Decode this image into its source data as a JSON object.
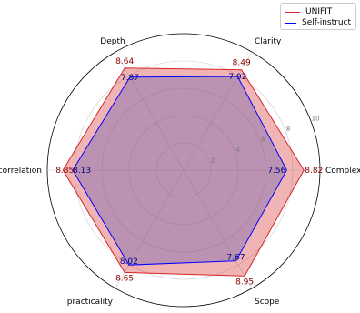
{
  "chart_data": {
    "type": "radar",
    "axes": [
      "Complexity",
      "Clarity",
      "Depth",
      "correlation",
      "practicality",
      "Scope"
    ],
    "rmax": 10,
    "rticks": [
      2,
      4,
      6,
      8,
      10
    ],
    "rtick_labels": [
      "2",
      "4",
      "6",
      "8",
      "10"
    ],
    "grid": true,
    "legend_placement": "top-right",
    "series": [
      {
        "name": "UNIFIT",
        "color": "#d62728",
        "fill": "#d62728",
        "values": [
          8.82,
          8.49,
          8.64,
          8.85,
          8.65,
          8.95
        ],
        "value_labels": [
          "8.82",
          "8.49",
          "8.64",
          "8.85",
          "8.65",
          "8.95"
        ]
      },
      {
        "name": "Self-instruct",
        "color": "#0000ff",
        "fill": "#7b68b0",
        "values": [
          7.56,
          7.92,
          7.87,
          8.13,
          8.02,
          7.67
        ],
        "value_labels": [
          "7.56",
          "7.92",
          "7.87",
          "8.13",
          "8.02",
          "7.67"
        ]
      }
    ]
  }
}
